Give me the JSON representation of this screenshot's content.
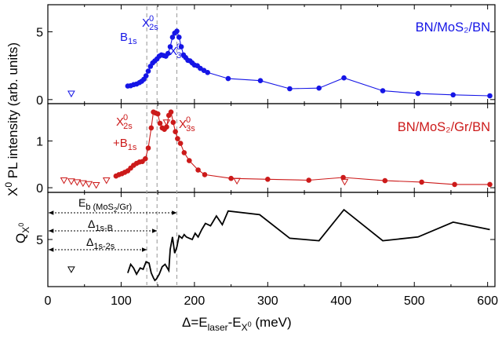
{
  "figure": {
    "x_axis_label": "Δ=E_laser-E_X⁰ (meV)",
    "x_ticks": [
      "0",
      "100",
      "200",
      "300",
      "400",
      "500",
      "600"
    ],
    "y_axis_label_shared": "X⁰ PL intensity (arb. units)"
  },
  "colors": {
    "blue": "#1515e6",
    "red": "#cc1a1a",
    "black": "#000000",
    "dash": "#a0a0a0"
  },
  "chart_data": [
    {
      "type": "line",
      "panel": "top",
      "title": "BN/MoS₂/BN",
      "ylabel": "X⁰ PL intensity (arb. units)",
      "xlim": [
        0,
        610
      ],
      "ylim": [
        -0.3,
        7.0
      ],
      "y_ticks": [
        "0",
        "5"
      ],
      "annotations": {
        "b1s": "B1s",
        "x2s": "X⁰2s",
        "x3s": "X⁰3s"
      },
      "series": [
        {
          "name": "BN/MoS2/BN",
          "x": [
            109,
            113,
            117,
            121,
            125,
            128,
            131,
            134,
            137,
            140,
            143,
            146,
            149,
            152,
            155,
            158,
            161,
            164,
            167,
            170,
            173,
            176,
            179,
            182,
            185,
            188,
            191,
            194,
            197,
            200,
            204,
            208,
            213,
            218,
            246,
            290,
            330,
            370,
            404,
            457,
            505,
            553,
            603
          ],
          "y": [
            1.0,
            1.02,
            1.1,
            1.15,
            1.25,
            1.35,
            1.5,
            1.75,
            2.1,
            2.45,
            2.7,
            2.85,
            3.0,
            3.2,
            3.3,
            3.25,
            3.2,
            3.4,
            3.9,
            4.6,
            4.9,
            5.05,
            4.6,
            3.9,
            3.3,
            3.1,
            2.9,
            2.85,
            2.7,
            2.55,
            2.5,
            2.3,
            2.15,
            2.0,
            1.55,
            1.4,
            0.8,
            0.85,
            1.6,
            0.65,
            0.45,
            0.35,
            0.28
          ]
        }
      ],
      "open_marker": {
        "x": [
          32
        ],
        "y": [
          0.45
        ]
      }
    },
    {
      "type": "line",
      "panel": "middle",
      "title": "BN/MoS₂/Gr/BN",
      "xlim": [
        0,
        610
      ],
      "ylim": [
        -0.1,
        1.8
      ],
      "y_ticks": [
        "0",
        "1"
      ],
      "annotations": {
        "x2s": "X⁰2s",
        "b1s": "+B1s",
        "x3s": "X⁰3s"
      },
      "series": [
        {
          "name": "BN/MoS2/Gr/BN",
          "x": [
            93,
            97,
            101,
            105,
            109,
            113,
            117,
            121,
            125,
            129,
            133,
            137,
            141,
            144,
            147,
            150,
            153,
            156,
            159,
            162,
            165,
            168,
            171,
            174,
            177,
            181,
            186,
            193,
            205,
            214,
            250,
            300,
            356,
            403,
            460,
            510,
            555,
            603
          ],
          "y": [
            0.25,
            0.28,
            0.3,
            0.33,
            0.36,
            0.42,
            0.48,
            0.52,
            0.55,
            0.56,
            0.62,
            0.85,
            1.28,
            1.62,
            1.6,
            1.58,
            1.38,
            1.28,
            1.25,
            1.3,
            1.55,
            1.62,
            1.4,
            1.2,
            1.05,
            0.95,
            0.75,
            0.58,
            0.38,
            0.28,
            0.2,
            0.18,
            0.16,
            0.22,
            0.15,
            0.12,
            0.07,
            0.07
          ]
        }
      ],
      "open_markers": {
        "x": [
          22,
          32,
          40,
          48,
          56,
          66,
          80,
          162,
          258,
          405
        ],
        "y": [
          0.16,
          0.14,
          0.12,
          0.1,
          0.08,
          0.06,
          0.16,
          1.4,
          0.15,
          0.13
        ]
      }
    },
    {
      "type": "line",
      "panel": "bottom",
      "ylabel": "Q_X⁰",
      "xlim": [
        0,
        610
      ],
      "ylim": [
        1.2,
        8.8
      ],
      "y_ticks": [
        "5"
      ],
      "arrows": [
        {
          "label": "E_b (MoS₂/Gr)",
          "to": 176
        },
        {
          "label": "Δ1s-B",
          "to": 149
        },
        {
          "label": "Δ1s-2s",
          "to": 135
        }
      ],
      "series": [
        {
          "name": "Q",
          "x": [
            109,
            113,
            117,
            121,
            126,
            130,
            134,
            138,
            141,
            144,
            146,
            148,
            152,
            156,
            160,
            165,
            167,
            170,
            173,
            176,
            179,
            183,
            186,
            189,
            193,
            197,
            201,
            205,
            210,
            215,
            222,
            230,
            238,
            246,
            289,
            330,
            370,
            404,
            457,
            505,
            553,
            603
          ],
          "y": [
            2.3,
            3.0,
            2.7,
            2.2,
            2.7,
            2.6,
            3.2,
            3.1,
            2.3,
            1.9,
            1.7,
            1.8,
            2.2,
            2.8,
            3.0,
            2.5,
            4.2,
            5.2,
            3.9,
            4.4,
            5.3,
            5.1,
            5.4,
            5.2,
            5.1,
            5.0,
            5.5,
            5.2,
            5.8,
            6.3,
            6.1,
            6.9,
            6.2,
            7.3,
            7.0,
            5.1,
            4.9,
            7.4,
            4.9,
            5.2,
            6.4,
            5.8
          ]
        }
      ],
      "open_marker": {
        "x": [
          32
        ],
        "y": [
          2.6
        ]
      }
    }
  ]
}
